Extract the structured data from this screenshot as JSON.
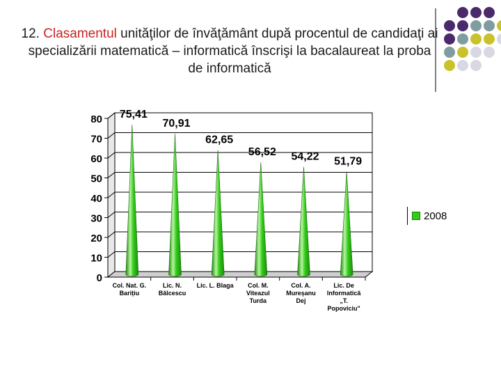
{
  "slide": {
    "title_prefix": "12. ",
    "title_highlight": "Clasamentul",
    "title_rest": " unităţilor de învăţământ după procentul de candidaţi ai specializării matematică – informatică înscrişi la bacalaureat la proba de informatică"
  },
  "decor": {
    "dot_colors": [
      "#4a2a6a",
      "#7f9ca0",
      "#c9c22a",
      "#d8d8e4"
    ]
  },
  "chart_data": {
    "type": "bar",
    "categories": [
      [
        "Col. Nat. G.",
        "Barițiu"
      ],
      [
        "Lic. N.",
        "Bălcescu"
      ],
      [
        "Lic. L. Blaga"
      ],
      [
        "Col. M.",
        "Viteazul",
        "Turda"
      ],
      [
        "Col. A.",
        "Mureșanu",
        "Dej"
      ],
      [
        "Lic. De",
        "Informatică",
        "„T.",
        "Popoviciu\""
      ]
    ],
    "series": [
      {
        "name": "2008",
        "values": [
          75.41,
          70.91,
          62.65,
          56.52,
          54.22,
          51.79
        ]
      }
    ],
    "value_labels": [
      "75,41",
      "70,91",
      "62,65",
      "56,52",
      "54,22",
      "51,79"
    ],
    "ylim": [
      0,
      80
    ],
    "yticks": [
      0,
      10,
      20,
      30,
      40,
      50,
      60,
      70,
      80
    ],
    "grid": true,
    "legend_position": "right",
    "colors": {
      "bar": "#33cc1a",
      "bar_dark": "#1a8a0a",
      "bar_light": "#b8f5a0"
    }
  }
}
